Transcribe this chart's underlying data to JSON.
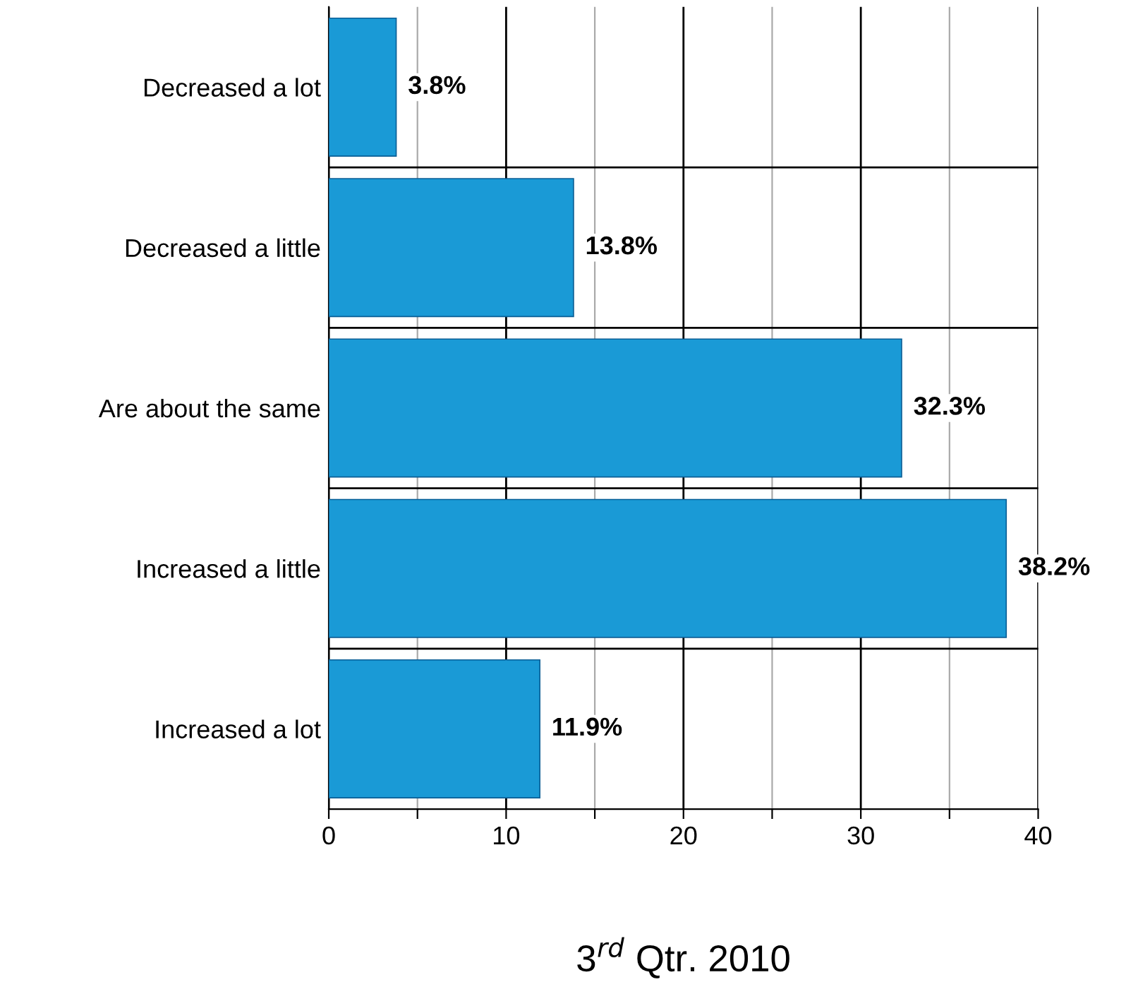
{
  "chart_data": {
    "type": "bar",
    "orientation": "horizontal",
    "categories": [
      "Decreased a lot",
      "Decreased a little",
      "Are about the same",
      "Increased a little",
      "Increased a lot"
    ],
    "values": [
      3.8,
      13.8,
      32.3,
      38.2,
      11.9
    ],
    "value_labels": [
      "3.8%",
      "13.8%",
      "32.3%",
      "38.2%",
      "11.9%"
    ],
    "color": "#1a9ad6",
    "xlim": [
      0,
      40
    ],
    "xticks": [
      0,
      {
        "value": 5,
        "label": null
      },
      10,
      {
        "value": 15,
        "label": null
      },
      20,
      {
        "value": 25,
        "label": null
      },
      30,
      {
        "value": 35,
        "label": null
      },
      40
    ],
    "xlabel": "3$^{rd}$ Qtr. 2010",
    "grid": true
  }
}
